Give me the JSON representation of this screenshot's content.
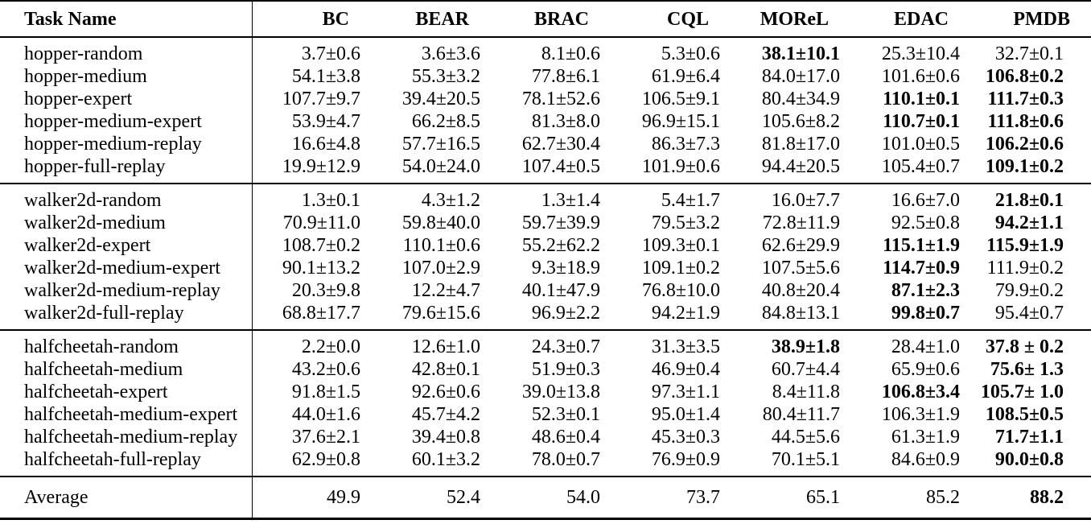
{
  "colors": {
    "text": "#000000",
    "background": "#ffffff",
    "rule": "#000000"
  },
  "table": {
    "columns": [
      "Task Name",
      "BC",
      "BEAR",
      "BRAC",
      "CQL",
      "MOReL",
      "EDAC",
      "PMDB"
    ],
    "sections": [
      {
        "name": "hopper",
        "rows": [
          {
            "task": "hopper-random",
            "cells": [
              {
                "v": "3.7±0.6"
              },
              {
                "v": "3.6±3.6"
              },
              {
                "v": "8.1±0.6"
              },
              {
                "v": "5.3±0.6"
              },
              {
                "v": "38.1±10.1",
                "b": true
              },
              {
                "v": "25.3±10.4"
              },
              {
                "v": "32.7±0.1"
              }
            ]
          },
          {
            "task": "hopper-medium",
            "cells": [
              {
                "v": "54.1±3.8"
              },
              {
                "v": "55.3±3.2"
              },
              {
                "v": "77.8±6.1"
              },
              {
                "v": "61.9±6.4"
              },
              {
                "v": "84.0±17.0"
              },
              {
                "v": "101.6±0.6"
              },
              {
                "v": "106.8±0.2",
                "b": true
              }
            ]
          },
          {
            "task": "hopper-expert",
            "cells": [
              {
                "v": "107.7±9.7"
              },
              {
                "v": "39.4±20.5"
              },
              {
                "v": "78.1±52.6"
              },
              {
                "v": "106.5±9.1"
              },
              {
                "v": "80.4±34.9"
              },
              {
                "v": "110.1±0.1",
                "b": true
              },
              {
                "v": "111.7±0.3",
                "b": true
              }
            ]
          },
          {
            "task": "hopper-medium-expert",
            "cells": [
              {
                "v": "53.9±4.7"
              },
              {
                "v": "66.2±8.5"
              },
              {
                "v": "81.3±8.0"
              },
              {
                "v": "96.9±15.1"
              },
              {
                "v": "105.6±8.2"
              },
              {
                "v": "110.7±0.1",
                "b": true
              },
              {
                "v": "111.8±0.6",
                "b": true
              }
            ]
          },
          {
            "task": "hopper-medium-replay",
            "cells": [
              {
                "v": "16.6±4.8"
              },
              {
                "v": "57.7±16.5"
              },
              {
                "v": "62.7±30.4"
              },
              {
                "v": "86.3±7.3"
              },
              {
                "v": "81.8±17.0"
              },
              {
                "v": "101.0±0.5"
              },
              {
                "v": "106.2±0.6",
                "b": true
              }
            ]
          },
          {
            "task": "hopper-full-replay",
            "cells": [
              {
                "v": "19.9±12.9"
              },
              {
                "v": "54.0±24.0"
              },
              {
                "v": "107.4±0.5"
              },
              {
                "v": "101.9±0.6"
              },
              {
                "v": "94.4±20.5"
              },
              {
                "v": "105.4±0.7"
              },
              {
                "v": "109.1±0.2",
                "b": true
              }
            ]
          }
        ]
      },
      {
        "name": "walker2d",
        "rows": [
          {
            "task": "walker2d-random",
            "cells": [
              {
                "v": "1.3±0.1"
              },
              {
                "v": "4.3±1.2"
              },
              {
                "v": "1.3±1.4"
              },
              {
                "v": "5.4±1.7"
              },
              {
                "v": "16.0±7.7"
              },
              {
                "v": "16.6±7.0"
              },
              {
                "v": "21.8±0.1",
                "b": true
              }
            ]
          },
          {
            "task": "walker2d-medium",
            "cells": [
              {
                "v": "70.9±11.0"
              },
              {
                "v": "59.8±40.0"
              },
              {
                "v": "59.7±39.9"
              },
              {
                "v": "79.5±3.2"
              },
              {
                "v": "72.8±11.9"
              },
              {
                "v": "92.5±0.8"
              },
              {
                "v": "94.2±1.1",
                "b": true
              }
            ]
          },
          {
            "task": "walker2d-expert",
            "cells": [
              {
                "v": "108.7±0.2"
              },
              {
                "v": "110.1±0.6"
              },
              {
                "v": "55.2±62.2"
              },
              {
                "v": "109.3±0.1"
              },
              {
                "v": "62.6±29.9"
              },
              {
                "v": "115.1±1.9",
                "b": true
              },
              {
                "v": "115.9±1.9",
                "b": true
              }
            ]
          },
          {
            "task": "walker2d-medium-expert",
            "cells": [
              {
                "v": "90.1±13.2"
              },
              {
                "v": "107.0±2.9"
              },
              {
                "v": "9.3±18.9"
              },
              {
                "v": "109.1±0.2"
              },
              {
                "v": "107.5±5.6"
              },
              {
                "v": "114.7±0.9",
                "b": true
              },
              {
                "v": "111.9±0.2"
              }
            ]
          },
          {
            "task": "walker2d-medium-replay",
            "cells": [
              {
                "v": "20.3±9.8"
              },
              {
                "v": "12.2±4.7"
              },
              {
                "v": "40.1±47.9"
              },
              {
                "v": "76.8±10.0"
              },
              {
                "v": "40.8±20.4"
              },
              {
                "v": "87.1±2.3",
                "b": true
              },
              {
                "v": "79.9±0.2"
              }
            ]
          },
          {
            "task": "walker2d-full-replay",
            "cells": [
              {
                "v": "68.8±17.7"
              },
              {
                "v": "79.6±15.6"
              },
              {
                "v": "96.9±2.2"
              },
              {
                "v": "94.2±1.9"
              },
              {
                "v": "84.8±13.1"
              },
              {
                "v": "99.8±0.7",
                "b": true
              },
              {
                "v": "95.4±0.7"
              }
            ]
          }
        ]
      },
      {
        "name": "halfcheetah",
        "rows": [
          {
            "task": "halfcheetah-random",
            "cells": [
              {
                "v": "2.2±0.0"
              },
              {
                "v": "12.6±1.0"
              },
              {
                "v": "24.3±0.7"
              },
              {
                "v": "31.3±3.5"
              },
              {
                "v": "38.9±1.8",
                "b": true
              },
              {
                "v": "28.4±1.0"
              },
              {
                "v": "37.8 ± 0.2",
                "b": true
              }
            ]
          },
          {
            "task": "halfcheetah-medium",
            "cells": [
              {
                "v": "43.2±0.6"
              },
              {
                "v": "42.8±0.1"
              },
              {
                "v": "51.9±0.3"
              },
              {
                "v": "46.9±0.4"
              },
              {
                "v": "60.7±4.4"
              },
              {
                "v": "65.9±0.6"
              },
              {
                "v": "75.6± 1.3",
                "b": true
              }
            ]
          },
          {
            "task": "halfcheetah-expert",
            "cells": [
              {
                "v": "91.8±1.5"
              },
              {
                "v": "92.6±0.6"
              },
              {
                "v": "39.0±13.8"
              },
              {
                "v": "97.3±1.1"
              },
              {
                "v": "8.4±11.8"
              },
              {
                "v": "106.8±3.4",
                "b": true
              },
              {
                "v": "105.7± 1.0",
                "b": true
              }
            ]
          },
          {
            "task": "halfcheetah-medium-expert",
            "cells": [
              {
                "v": "44.0±1.6"
              },
              {
                "v": "45.7±4.2"
              },
              {
                "v": "52.3±0.1"
              },
              {
                "v": "95.0±1.4"
              },
              {
                "v": "80.4±11.7"
              },
              {
                "v": "106.3±1.9"
              },
              {
                "v": "108.5±0.5",
                "b": true
              }
            ]
          },
          {
            "task": "halfcheetah-medium-replay",
            "cells": [
              {
                "v": "37.6±2.1"
              },
              {
                "v": "39.4±0.8"
              },
              {
                "v": "48.6±0.4"
              },
              {
                "v": "45.3±0.3"
              },
              {
                "v": "44.5±5.6"
              },
              {
                "v": "61.3±1.9"
              },
              {
                "v": "71.7±1.1",
                "b": true
              }
            ]
          },
          {
            "task": "halfcheetah-full-replay",
            "cells": [
              {
                "v": "62.9±0.8"
              },
              {
                "v": "60.1±3.2"
              },
              {
                "v": "78.0±0.7"
              },
              {
                "v": "76.9±0.9"
              },
              {
                "v": "70.1±5.1"
              },
              {
                "v": "84.6±0.9"
              },
              {
                "v": "90.0±0.8",
                "b": true
              }
            ]
          }
        ]
      }
    ],
    "footer": {
      "task": "Average",
      "cells": [
        {
          "v": "49.9"
        },
        {
          "v": "52.4"
        },
        {
          "v": "54.0"
        },
        {
          "v": "73.7"
        },
        {
          "v": "65.1"
        },
        {
          "v": "85.2"
        },
        {
          "v": "88.2",
          "b": true
        }
      ]
    }
  }
}
